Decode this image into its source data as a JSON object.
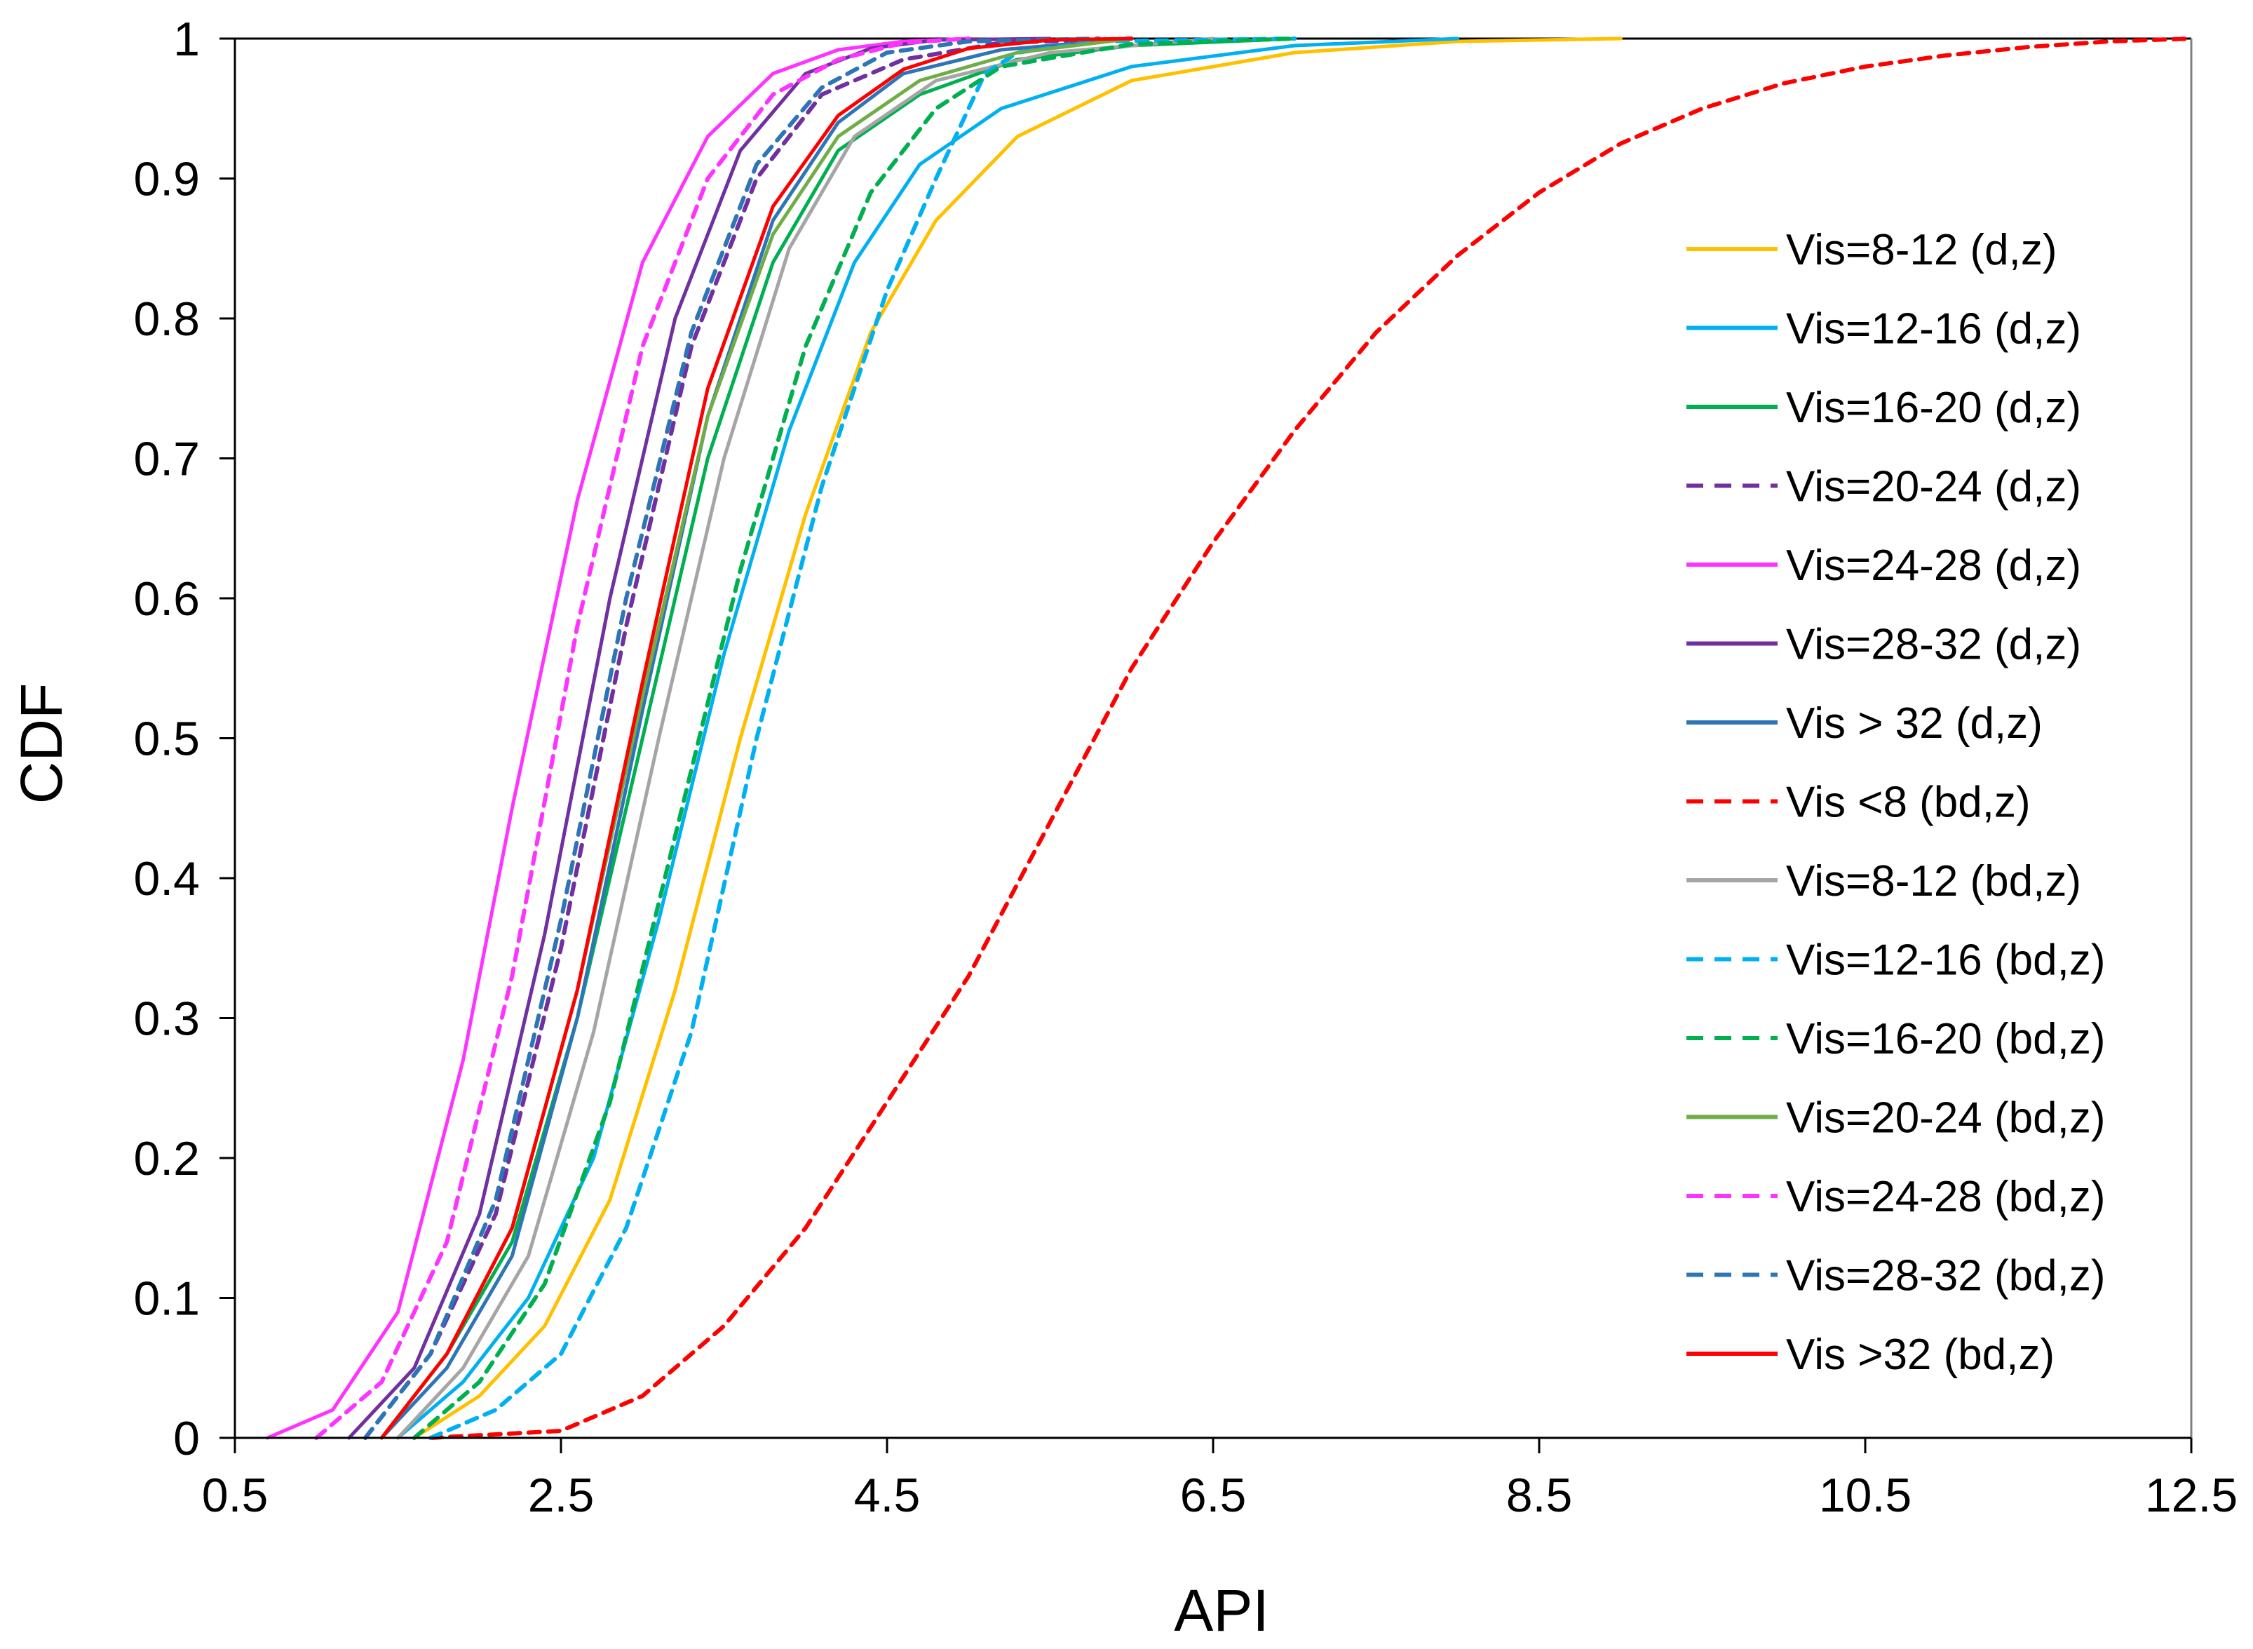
{
  "chart_data": {
    "type": "line",
    "title": "",
    "xlabel": "API",
    "ylabel": "CDF",
    "xlim": [
      0.5,
      12.5
    ],
    "ylim": [
      0,
      1
    ],
    "xticks": [
      0.5,
      2.5,
      4.5,
      6.5,
      8.5,
      10.5,
      12.5
    ],
    "xtick_labels": [
      "0.5",
      "2.5",
      "4.5",
      "6.5",
      "8.5",
      "10.5",
      "12.5"
    ],
    "yticks": [
      0,
      0.1,
      0.2,
      0.3,
      0.4,
      0.5,
      0.6,
      0.7,
      0.8,
      0.9,
      1
    ],
    "ytick_labels": [
      "0",
      "0.1",
      "0.2",
      "0.3",
      "0.4",
      "0.5",
      "0.6",
      "0.7",
      "0.8",
      "0.9",
      "1"
    ],
    "grid": false,
    "legend_position": "right",
    "series": [
      {
        "name": "Vis=8-12 (d,z)",
        "color": "#FFC000",
        "style": "solid",
        "x": [
          1.6,
          2.0,
          2.4,
          2.8,
          3.2,
          3.6,
          4.0,
          4.4,
          4.8,
          5.3,
          6.0,
          7.0,
          8.0,
          9.0
        ],
        "y": [
          0.0,
          0.03,
          0.08,
          0.17,
          0.32,
          0.5,
          0.66,
          0.79,
          0.87,
          0.93,
          0.97,
          0.99,
          0.998,
          1.0
        ]
      },
      {
        "name": "Vis=12-16 (d,z)",
        "color": "#00B0F0",
        "style": "solid",
        "x": [
          1.5,
          1.9,
          2.3,
          2.7,
          3.1,
          3.5,
          3.9,
          4.3,
          4.7,
          5.2,
          6.0,
          7.0,
          8.0
        ],
        "y": [
          0.0,
          0.04,
          0.1,
          0.2,
          0.37,
          0.56,
          0.72,
          0.84,
          0.91,
          0.95,
          0.98,
          0.995,
          1.0
        ]
      },
      {
        "name": "Vis=16-20 (d,z)",
        "color": "#00B050",
        "style": "solid",
        "x": [
          1.4,
          1.8,
          2.2,
          2.6,
          3.0,
          3.4,
          3.8,
          4.2,
          4.7,
          5.3,
          6.0,
          7.0
        ],
        "y": [
          0.0,
          0.06,
          0.14,
          0.3,
          0.5,
          0.7,
          0.84,
          0.92,
          0.96,
          0.985,
          0.995,
          1.0
        ]
      },
      {
        "name": "Vis=20-24 (d,z)",
        "color": "#7030A0",
        "style": "dashed",
        "x": [
          1.3,
          1.7,
          2.1,
          2.5,
          2.9,
          3.3,
          3.7,
          4.1,
          4.6,
          5.2,
          6.0
        ],
        "y": [
          0.0,
          0.06,
          0.16,
          0.35,
          0.58,
          0.78,
          0.9,
          0.96,
          0.985,
          0.997,
          1.0
        ]
      },
      {
        "name": "Vis=24-28 (d,z)",
        "color": "#FF33FF",
        "style": "solid",
        "x": [
          0.7,
          1.1,
          1.5,
          1.9,
          2.2,
          2.6,
          3.0,
          3.4,
          3.8,
          4.2,
          4.6,
          5.0
        ],
        "y": [
          0.0,
          0.02,
          0.09,
          0.27,
          0.45,
          0.67,
          0.84,
          0.93,
          0.975,
          0.992,
          0.998,
          1.0
        ]
      },
      {
        "name": "Vis=28-32 (d,z)",
        "color": "#7030A0",
        "style": "solid",
        "x": [
          1.2,
          1.6,
          2.0,
          2.4,
          2.8,
          3.2,
          3.6,
          4.0,
          4.4,
          4.8,
          5.5
        ],
        "y": [
          0.0,
          0.05,
          0.16,
          0.36,
          0.6,
          0.8,
          0.92,
          0.975,
          0.993,
          0.999,
          1.0
        ]
      },
      {
        "name": "Vis > 32 (d,z)",
        "color": "#2E75B6",
        "style": "solid",
        "x": [
          1.4,
          1.8,
          2.2,
          2.6,
          3.0,
          3.4,
          3.8,
          4.2,
          4.6,
          5.2,
          6.0
        ],
        "y": [
          0.0,
          0.05,
          0.13,
          0.3,
          0.52,
          0.73,
          0.87,
          0.94,
          0.975,
          0.992,
          1.0
        ]
      },
      {
        "name": "Vis <8 (bd,z)",
        "color": "#FF0000",
        "style": "dashed",
        "x": [
          1.7,
          2.5,
          3.0,
          3.5,
          4.0,
          4.5,
          5.0,
          5.5,
          6.0,
          6.5,
          7.0,
          7.5,
          8.0,
          8.5,
          9.0,
          9.5,
          10.0,
          10.5,
          11.0,
          11.5,
          12.0,
          12.5
        ],
        "y": [
          0.0,
          0.005,
          0.03,
          0.08,
          0.15,
          0.24,
          0.33,
          0.44,
          0.55,
          0.64,
          0.72,
          0.79,
          0.845,
          0.89,
          0.925,
          0.95,
          0.968,
          0.98,
          0.988,
          0.994,
          0.998,
          1.0
        ]
      },
      {
        "name": "Vis=8-12 (bd,z)",
        "color": "#A5A5A5",
        "style": "solid",
        "x": [
          1.5,
          1.9,
          2.3,
          2.7,
          3.1,
          3.5,
          3.9,
          4.3,
          4.8,
          5.5,
          6.5
        ],
        "y": [
          0.0,
          0.05,
          0.13,
          0.29,
          0.5,
          0.7,
          0.85,
          0.93,
          0.97,
          0.99,
          1.0
        ]
      },
      {
        "name": "Vis=12-16 (bd,z)",
        "color": "#00B0F0",
        "style": "dashed",
        "x": [
          1.7,
          2.1,
          2.5,
          2.9,
          3.3,
          3.7,
          4.1,
          4.5,
          4.8,
          5.0,
          5.1,
          5.3,
          5.8,
          7.0
        ],
        "y": [
          0.0,
          0.02,
          0.06,
          0.15,
          0.29,
          0.5,
          0.68,
          0.82,
          0.9,
          0.95,
          0.975,
          0.99,
          0.998,
          1.0
        ]
      },
      {
        "name": "Vis=16-20 (bd,z)",
        "color": "#00B050",
        "style": "dashed",
        "x": [
          1.6,
          2.0,
          2.4,
          2.8,
          3.2,
          3.6,
          4.0,
          4.4,
          4.8,
          5.2,
          6.0,
          7.0
        ],
        "y": [
          0.0,
          0.04,
          0.11,
          0.24,
          0.43,
          0.62,
          0.78,
          0.89,
          0.95,
          0.98,
          0.996,
          1.0
        ]
      },
      {
        "name": "Vis=20-24 (bd,z)",
        "color": "#70AD47",
        "style": "solid",
        "x": [
          1.4,
          1.8,
          2.2,
          2.6,
          3.0,
          3.4,
          3.8,
          4.2,
          4.7,
          5.3,
          6.0
        ],
        "y": [
          0.0,
          0.06,
          0.15,
          0.32,
          0.53,
          0.73,
          0.86,
          0.93,
          0.97,
          0.99,
          1.0
        ]
      },
      {
        "name": "Vis=24-28 (bd,z)",
        "color": "#FF33FF",
        "style": "dashed",
        "x": [
          1.0,
          1.4,
          1.8,
          2.2,
          2.6,
          3.0,
          3.4,
          3.8,
          4.2,
          4.6,
          5.0
        ],
        "y": [
          0.0,
          0.04,
          0.14,
          0.33,
          0.58,
          0.78,
          0.9,
          0.96,
          0.985,
          0.997,
          1.0
        ]
      },
      {
        "name": "Vis=28-32 (bd,z)",
        "color": "#2E75B6",
        "style": "dashed",
        "x": [
          1.3,
          1.7,
          2.1,
          2.5,
          2.9,
          3.3,
          3.7,
          4.1,
          4.5,
          5.0,
          5.8
        ],
        "y": [
          0.0,
          0.06,
          0.17,
          0.37,
          0.6,
          0.79,
          0.91,
          0.965,
          0.99,
          0.998,
          1.0
        ]
      },
      {
        "name": "Vis >32 (bd,z)",
        "color": "#FF0000",
        "style": "solid",
        "x": [
          1.4,
          1.8,
          2.2,
          2.6,
          3.0,
          3.4,
          3.8,
          4.2,
          4.6,
          5.0,
          5.5,
          6.0
        ],
        "y": [
          0.0,
          0.06,
          0.15,
          0.32,
          0.54,
          0.75,
          0.88,
          0.945,
          0.978,
          0.993,
          0.999,
          1.0
        ]
      }
    ]
  }
}
